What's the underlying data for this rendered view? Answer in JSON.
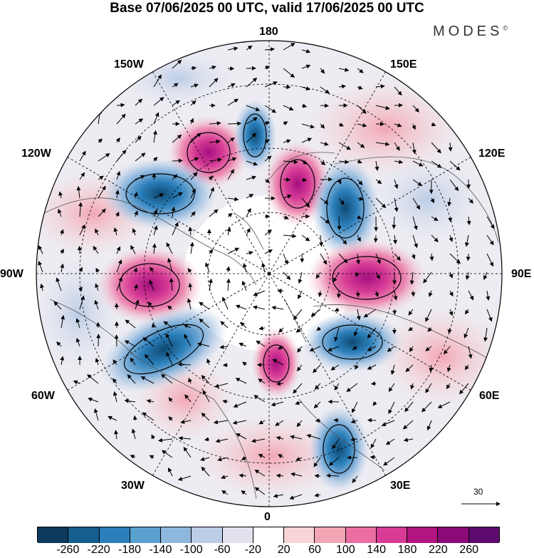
{
  "title": "Base 07/06/2025 00 UTC, valid 17/06/2025 00 UTC",
  "brand": "MODES",
  "brand_mark": "©",
  "longitude_labels": {
    "top": "180",
    "bottom": "0",
    "left": "90W",
    "right": "90E",
    "upper_left_1": "150W",
    "upper_left_2": "120W",
    "upper_right_1": "150E",
    "upper_right_2": "120E",
    "lower_left_1": "60W",
    "lower_left_2": "30W",
    "lower_right_1": "60E",
    "lower_right_2": "30E"
  },
  "vector_scale": {
    "label": "30"
  },
  "colorbar": {
    "colors": [
      "#0d3a5c",
      "#155f8e",
      "#2b7fba",
      "#5aa0cf",
      "#8db7dd",
      "#bccde6",
      "#e2e2ef",
      "#ffffff",
      "#f8d4d6",
      "#f2a6b4",
      "#ea6fa0",
      "#d73b95",
      "#b2157f",
      "#8a0a78",
      "#5d0a6e"
    ],
    "tick_labels": [
      "-260",
      "-220",
      "-180",
      "-140",
      "-100",
      "-60",
      "-20",
      "20",
      "60",
      "100",
      "140",
      "180",
      "220",
      "260"
    ]
  },
  "anomaly_centers": [
    {
      "name": "pink-1",
      "color": "#c21789"
    },
    {
      "name": "blue-1",
      "color": "#1b6a9b"
    }
  ]
}
